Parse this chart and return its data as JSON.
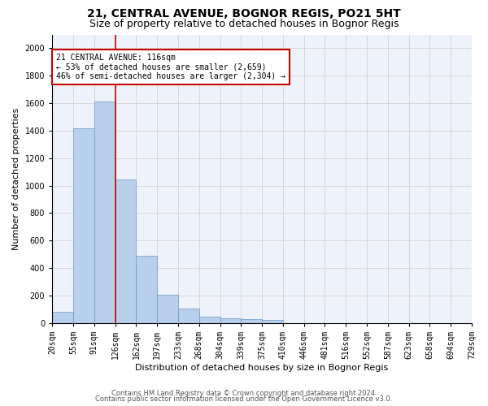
{
  "title": "21, CENTRAL AVENUE, BOGNOR REGIS, PO21 5HT",
  "subtitle": "Size of property relative to detached houses in Bognor Regis",
  "xlabel": "Distribution of detached houses by size in Bognor Regis",
  "ylabel": "Number of detached properties",
  "bar_values": [
    80,
    1420,
    1610,
    1045,
    490,
    205,
    105,
    48,
    35,
    25,
    20,
    0,
    0,
    0,
    0,
    0,
    0,
    0,
    0,
    0
  ],
  "bin_labels": [
    "20sqm",
    "55sqm",
    "91sqm",
    "126sqm",
    "162sqm",
    "197sqm",
    "233sqm",
    "268sqm",
    "304sqm",
    "339sqm",
    "375sqm",
    "410sqm",
    "446sqm",
    "481sqm",
    "516sqm",
    "552sqm",
    "587sqm",
    "623sqm",
    "658sqm",
    "694sqm",
    "729sqm"
  ],
  "bar_color": "#b8d0eb",
  "bar_edge_color": "#6699cc",
  "vline_x": 3,
  "vline_color": "#cc0000",
  "annotation_text": "21 CENTRAL AVENUE: 116sqm\n← 53% of detached houses are smaller (2,659)\n46% of semi-detached houses are larger (2,304) →",
  "annotation_box_color": "#ffffff",
  "annotation_box_edge": "#cc0000",
  "ylim": [
    0,
    2100
  ],
  "yticks": [
    0,
    200,
    400,
    600,
    800,
    1000,
    1200,
    1400,
    1600,
    1800,
    2000
  ],
  "grid_color": "#cccccc",
  "bg_color": "#eef2fa",
  "footer_line1": "Contains HM Land Registry data © Crown copyright and database right 2024.",
  "footer_line2": "Contains public sector information licensed under the Open Government Licence v3.0.",
  "title_fontsize": 10,
  "subtitle_fontsize": 9,
  "label_fontsize": 8,
  "tick_fontsize": 7,
  "annot_fontsize": 7,
  "footer_fontsize": 6
}
